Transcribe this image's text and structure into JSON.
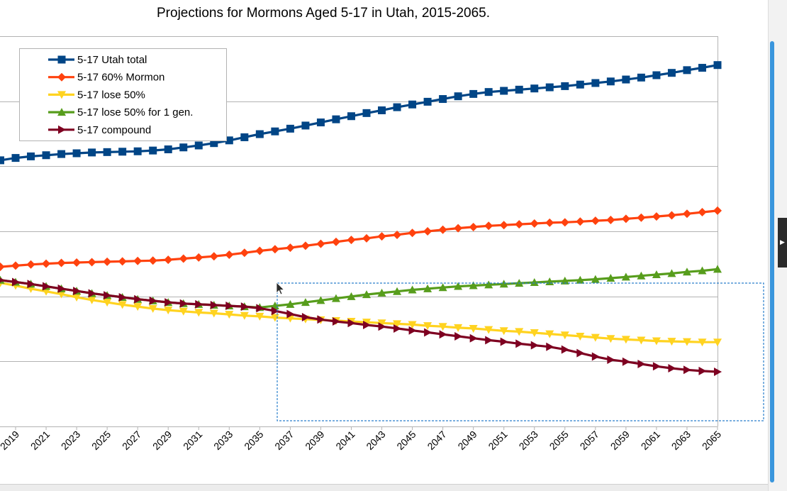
{
  "colors": {
    "utah_total": "#004586",
    "mormon_60": "#ff420e",
    "lose_50": "#ffd320",
    "lose_50_1gen": "#579d1c",
    "compound": "#7e0021",
    "grid": "#b3b3b3",
    "selection": "#2a7fcc",
    "scrollbar": "#3a96dd"
  },
  "chart_data": {
    "type": "line",
    "title": "Projections for Mormons Aged 5-17 in Utah, 2015-2065.",
    "xlabel": "",
    "ylabel": "",
    "x_range": [
      2015,
      2065
    ],
    "x_visible_from": 2018,
    "ylim": [
      0,
      100
    ],
    "grid": "horizontal",
    "legend_position": "top-left",
    "categories": [
      "2019",
      "2021",
      "2023",
      "2025",
      "2027",
      "2029",
      "2031",
      "2033",
      "2035",
      "2037",
      "2039",
      "2041",
      "2043",
      "2045",
      "2047",
      "2049",
      "2051",
      "2053",
      "2055",
      "2057",
      "2059",
      "2061",
      "2063",
      "2065"
    ],
    "series": [
      {
        "name": "5-17 Utah total",
        "color": "#004586",
        "marker": "square",
        "x": [
          2018,
          2019,
          2020,
          2021,
          2022,
          2023,
          2024,
          2025,
          2026,
          2027,
          2028,
          2029,
          2030,
          2031,
          2032,
          2033,
          2034,
          2035,
          2036,
          2037,
          2038,
          2039,
          2040,
          2041,
          2042,
          2043,
          2044,
          2045,
          2046,
          2047,
          2048,
          2049,
          2050,
          2051,
          2052,
          2053,
          2054,
          2055,
          2056,
          2057,
          2058,
          2059,
          2060,
          2061,
          2062,
          2063,
          2064,
          2065
        ],
        "y": [
          68.2,
          68.8,
          69.2,
          69.5,
          69.8,
          70.0,
          70.2,
          70.3,
          70.4,
          70.5,
          70.7,
          71.0,
          71.5,
          72.0,
          72.6,
          73.3,
          74.1,
          74.9,
          75.6,
          76.3,
          77.1,
          77.9,
          78.7,
          79.5,
          80.3,
          81.0,
          81.8,
          82.5,
          83.2,
          83.9,
          84.6,
          85.2,
          85.7,
          86.0,
          86.3,
          86.6,
          86.9,
          87.2,
          87.6,
          88.0,
          88.4,
          88.9,
          89.4,
          90.0,
          90.6,
          91.3,
          91.9,
          92.6
        ]
      },
      {
        "name": "5-17 60% Mormon",
        "color": "#ff420e",
        "marker": "diamond",
        "x": [
          2018,
          2019,
          2020,
          2021,
          2022,
          2023,
          2024,
          2025,
          2026,
          2027,
          2028,
          2029,
          2030,
          2031,
          2032,
          2033,
          2034,
          2035,
          2036,
          2037,
          2038,
          2039,
          2040,
          2041,
          2042,
          2043,
          2044,
          2045,
          2046,
          2047,
          2048,
          2049,
          2050,
          2051,
          2052,
          2053,
          2054,
          2055,
          2056,
          2057,
          2058,
          2059,
          2060,
          2061,
          2062,
          2063,
          2064,
          2065
        ],
        "y": [
          40.9,
          41.2,
          41.5,
          41.7,
          41.9,
          42.0,
          42.1,
          42.2,
          42.3,
          42.4,
          42.5,
          42.7,
          43.0,
          43.3,
          43.6,
          44.0,
          44.5,
          45.0,
          45.4,
          45.8,
          46.3,
          46.8,
          47.3,
          47.8,
          48.2,
          48.7,
          49.1,
          49.6,
          50.0,
          50.4,
          50.8,
          51.1,
          51.4,
          51.6,
          51.8,
          52.0,
          52.2,
          52.3,
          52.5,
          52.7,
          52.9,
          53.2,
          53.5,
          53.8,
          54.1,
          54.5,
          54.9,
          55.3
        ]
      },
      {
        "name": "5-17 lose 50%",
        "color": "#ffd320",
        "marker": "triangle-down",
        "x": [
          2018,
          2019,
          2020,
          2021,
          2022,
          2023,
          2024,
          2025,
          2026,
          2027,
          2028,
          2029,
          2030,
          2031,
          2032,
          2033,
          2034,
          2035,
          2036,
          2037,
          2038,
          2039,
          2040,
          2041,
          2042,
          2043,
          2044,
          2045,
          2046,
          2047,
          2048,
          2049,
          2050,
          2051,
          2052,
          2053,
          2054,
          2055,
          2056,
          2057,
          2058,
          2059,
          2060,
          2061,
          2062,
          2063,
          2064,
          2065
        ],
        "y": [
          36.8,
          36.1,
          35.3,
          34.6,
          33.9,
          33.1,
          32.4,
          31.8,
          31.2,
          30.7,
          30.2,
          29.8,
          29.5,
          29.2,
          29.0,
          28.7,
          28.4,
          28.2,
          27.9,
          27.7,
          27.5,
          27.3,
          27.1,
          26.9,
          26.7,
          26.5,
          26.3,
          26.1,
          25.8,
          25.6,
          25.3,
          25.1,
          24.8,
          24.5,
          24.3,
          24.0,
          23.7,
          23.4,
          23.1,
          22.8,
          22.5,
          22.3,
          22.1,
          21.9,
          21.8,
          21.7,
          21.6,
          21.6
        ]
      },
      {
        "name": "5-17 lose 50% for 1 gen.",
        "color": "#579d1c",
        "marker": "triangle-up",
        "x": [
          2018,
          2019,
          2020,
          2021,
          2022,
          2023,
          2024,
          2025,
          2026,
          2027,
          2028,
          2029,
          2030,
          2031,
          2032,
          2033,
          2034,
          2035,
          2036,
          2037,
          2038,
          2039,
          2040,
          2041,
          2042,
          2043,
          2044,
          2045,
          2046,
          2047,
          2048,
          2049,
          2050,
          2051,
          2052,
          2053,
          2054,
          2055,
          2056,
          2057,
          2058,
          2059,
          2060,
          2061,
          2062,
          2063,
          2064,
          2065
        ],
        "y": [
          37.5,
          37.0,
          36.5,
          35.9,
          35.3,
          34.7,
          34.1,
          33.6,
          33.1,
          32.6,
          32.2,
          31.8,
          31.5,
          31.3,
          31.1,
          30.9,
          30.7,
          30.5,
          30.9,
          31.3,
          31.8,
          32.3,
          32.8,
          33.3,
          33.8,
          34.2,
          34.6,
          35.0,
          35.3,
          35.6,
          35.9,
          36.1,
          36.3,
          36.5,
          36.7,
          36.9,
          37.1,
          37.3,
          37.5,
          37.7,
          38.0,
          38.3,
          38.6,
          38.9,
          39.2,
          39.6,
          39.9,
          40.3
        ]
      },
      {
        "name": "5-17 compound",
        "color": "#7e0021",
        "marker": "triangle-right",
        "x": [
          2018,
          2019,
          2020,
          2021,
          2022,
          2023,
          2024,
          2025,
          2026,
          2027,
          2028,
          2029,
          2030,
          2031,
          2032,
          2033,
          2034,
          2035,
          2036,
          2037,
          2038,
          2039,
          2040,
          2041,
          2042,
          2043,
          2044,
          2045,
          2046,
          2047,
          2048,
          2049,
          2050,
          2051,
          2052,
          2053,
          2054,
          2055,
          2056,
          2057,
          2058,
          2059,
          2060,
          2061,
          2062,
          2063,
          2064,
          2065
        ],
        "y": [
          37.5,
          37.0,
          36.5,
          35.9,
          35.3,
          34.7,
          34.1,
          33.6,
          33.1,
          32.6,
          32.2,
          31.8,
          31.5,
          31.3,
          31.1,
          30.9,
          30.7,
          30.3,
          29.6,
          28.8,
          28.0,
          27.4,
          26.9,
          26.5,
          26.0,
          25.6,
          25.1,
          24.6,
          24.1,
          23.6,
          23.1,
          22.6,
          22.1,
          21.7,
          21.2,
          20.8,
          20.4,
          19.7,
          18.8,
          17.9,
          17.1,
          16.6,
          16.0,
          15.4,
          14.9,
          14.5,
          14.2,
          14.0
        ]
      }
    ]
  }
}
